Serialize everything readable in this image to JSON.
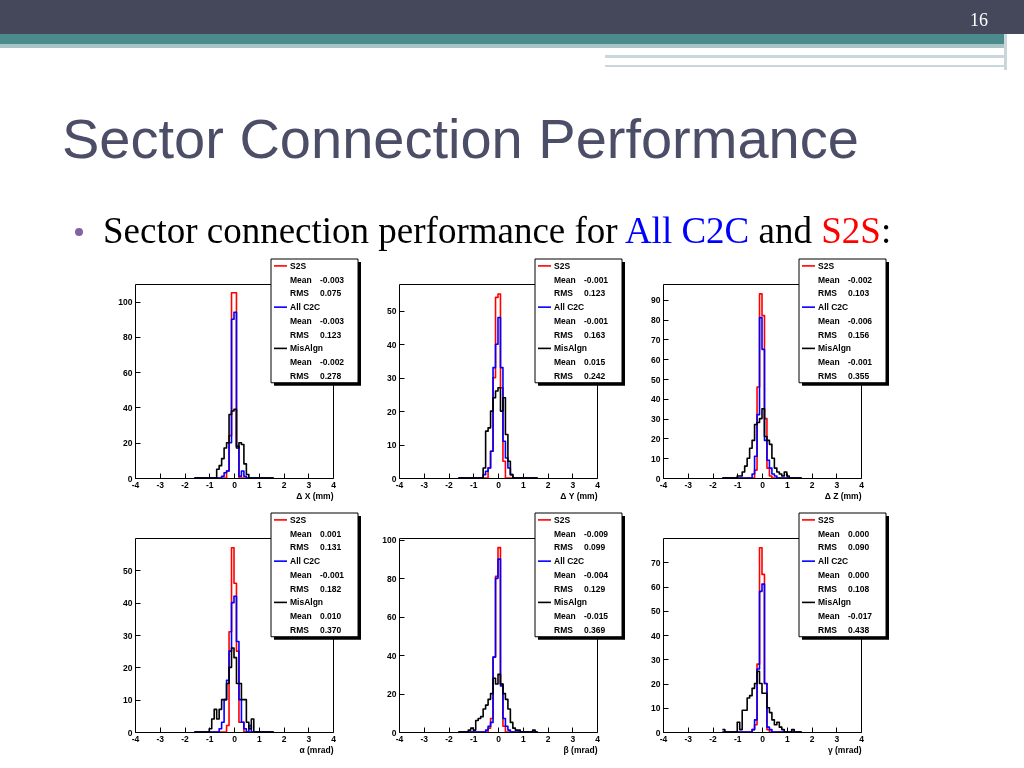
{
  "chart_data": [
    {
      "type": "histogram",
      "title": "Sector Connection Performance",
      "subtitle": "Sector connection performance for All C2C and S2S:",
      "xlabel": "Δ X (mm)",
      "xlim": [
        -4,
        4
      ],
      "xticks": [
        -4,
        -3,
        -2,
        -1,
        0,
        1,
        2,
        3,
        4
      ],
      "ylim": [
        0,
        110
      ],
      "yticks": [
        0,
        20,
        40,
        60,
        80,
        100
      ],
      "legend": "top right",
      "bins": [
        -1.6,
        -1.5,
        -1.4,
        -1.3,
        -1.2,
        -1.1,
        -1,
        -0.9,
        -0.8,
        -0.7,
        -0.6,
        -0.5,
        -0.4,
        -0.3,
        -0.2,
        -0.1,
        0,
        0.1,
        0.2,
        0.3,
        0.4,
        0.5,
        0.6,
        0.7,
        0.8,
        0.9,
        1,
        1.1,
        1.2,
        1.3,
        1.4,
        1.5,
        1.6
      ],
      "series": [
        {
          "name": "S2S",
          "color": "#ff0000",
          "values": [
            0,
            0,
            0,
            0,
            0,
            0,
            0,
            0,
            0,
            0,
            0,
            0,
            0,
            4,
            24,
            105,
            105,
            18,
            0,
            0,
            0,
            0,
            0,
            0,
            0,
            0,
            0,
            0,
            0,
            0,
            0,
            0
          ]
        },
        {
          "name": "All C2C",
          "color": "#0000ff",
          "values": [
            0,
            0,
            0,
            0,
            0,
            0,
            0,
            0,
            0,
            0,
            0,
            1,
            3,
            4,
            20,
            90,
            94,
            18,
            1,
            4,
            1,
            0,
            0,
            0,
            0,
            0,
            0,
            0,
            0,
            0,
            0,
            0
          ]
        },
        {
          "name": "MisAlgn",
          "color": "#000000",
          "values": [
            0,
            0,
            0,
            0,
            0,
            0,
            0,
            0,
            0,
            5,
            7,
            11,
            17,
            20,
            36,
            38,
            39,
            17,
            20,
            19,
            8,
            2,
            0,
            0,
            0,
            0,
            0,
            0,
            0,
            0,
            0,
            0
          ]
        }
      ],
      "annotations": [
        "Mean -0.003",
        "RMS 0.075",
        "Mean -0.003",
        "RMS 0.123",
        "Mean -0.002",
        "RMS 0.278",
        "16"
      ]
    },
    {
      "type": "histogram",
      "xlabel": "Δ Y (mm)",
      "xlim": [
        -4,
        4
      ],
      "xticks": [
        -4,
        -3,
        -2,
        -1,
        0,
        1,
        2,
        3,
        4
      ],
      "ylim": [
        0,
        58
      ],
      "yticks": [
        0,
        10,
        20,
        30,
        40,
        50
      ],
      "legend": "top right",
      "bins": [
        -1.6,
        -1.5,
        -1.4,
        -1.3,
        -1.2,
        -1.1,
        -1,
        -0.9,
        -0.8,
        -0.7,
        -0.6,
        -0.5,
        -0.4,
        -0.3,
        -0.2,
        -0.1,
        0,
        0.1,
        0.2,
        0.3,
        0.4,
        0.5,
        0.6,
        0.7,
        0.8,
        0.9,
        1,
        1.1,
        1.2,
        1.3,
        1.4,
        1.5,
        1.6
      ],
      "series": [
        {
          "name": "S2S",
          "color": "#ff0000",
          "values": [
            0,
            0,
            0,
            0,
            0,
            0,
            0,
            0,
            0,
            0,
            0,
            0,
            3,
            8,
            30,
            54,
            55,
            27,
            5,
            0,
            0,
            0,
            0,
            0,
            0,
            0,
            0,
            0,
            0,
            0,
            0,
            0
          ]
        },
        {
          "name": "All C2C",
          "color": "#0000ff",
          "values": [
            0,
            0,
            0,
            0,
            0,
            0,
            0,
            0,
            0,
            0,
            1,
            2,
            3,
            8,
            33,
            40,
            48,
            33,
            11,
            6,
            3,
            1,
            0,
            0,
            0,
            0,
            0,
            0,
            0,
            0,
            0,
            0
          ]
        },
        {
          "name": "MisAlgn",
          "color": "#000000",
          "values": [
            0,
            0,
            0,
            0,
            0,
            0,
            0,
            0,
            0,
            0,
            3,
            14,
            15,
            20,
            24,
            26,
            27,
            20,
            24,
            13,
            5,
            1,
            0,
            0,
            0,
            0,
            0,
            0,
            0,
            0,
            0,
            0
          ]
        }
      ],
      "annotations": [
        "Mean -0.001",
        "RMS 0.123",
        "Mean -0.001",
        "RMS 0.163",
        "Mean 0.015",
        "RMS 0.242"
      ]
    },
    {
      "type": "histogram",
      "xlabel": "Δ Z (mm)",
      "xlim": [
        -4,
        4
      ],
      "xticks": [
        -4,
        -3,
        -2,
        -1,
        0,
        1,
        2,
        3,
        4
      ],
      "ylim": [
        0,
        98
      ],
      "yticks": [
        0,
        10,
        20,
        30,
        40,
        50,
        60,
        70,
        80,
        90
      ],
      "legend": "top right",
      "bins": [
        -1.6,
        -1.5,
        -1.4,
        -1.3,
        -1.2,
        -1.1,
        -1,
        -0.9,
        -0.8,
        -0.7,
        -0.6,
        -0.5,
        -0.4,
        -0.3,
        -0.2,
        -0.1,
        0,
        0.1,
        0.2,
        0.3,
        0.4,
        0.5,
        0.6,
        0.7,
        0.8,
        0.9,
        1,
        1.1,
        1.2,
        1.3,
        1.4,
        1.5,
        1.6
      ],
      "series": [
        {
          "name": "S2S",
          "color": "#ff0000",
          "values": [
            0,
            0,
            0,
            0,
            0,
            0,
            0,
            0,
            0,
            0,
            0,
            0,
            0,
            4,
            46,
            93,
            82,
            30,
            5,
            1,
            0,
            0,
            0,
            0,
            0,
            0,
            0,
            0,
            0,
            0,
            0,
            0
          ]
        },
        {
          "name": "All C2C",
          "color": "#0000ff",
          "values": [
            0,
            0,
            0,
            0,
            0,
            0,
            0,
            0,
            0,
            0,
            0,
            0,
            2,
            11,
            32,
            81,
            65,
            19,
            9,
            5,
            2,
            1,
            0,
            0,
            0,
            0,
            0,
            0,
            0,
            0,
            0,
            0
          ]
        },
        {
          "name": "MisAlgn",
          "color": "#000000",
          "values": [
            0,
            0,
            0,
            0,
            0,
            0,
            1,
            1,
            3,
            6,
            10,
            15,
            19,
            27,
            28,
            30,
            35,
            21,
            19,
            17,
            10,
            5,
            3,
            2,
            1,
            3,
            1,
            0,
            0,
            0,
            0,
            0
          ]
        }
      ],
      "annotations": [
        "Mean -0.002",
        "RMS 0.103",
        "Mean -0.006",
        "RMS 0.156",
        "Mean -0.001",
        "RMS 0.355"
      ]
    },
    {
      "type": "histogram",
      "xlabel": "α (mrad)",
      "xlim": [
        -4,
        4
      ],
      "xticks": [
        -4,
        -3,
        -2,
        -1,
        0,
        1,
        2,
        3,
        4
      ],
      "ylim": [
        0,
        60
      ],
      "yticks": [
        0,
        10,
        20,
        30,
        40,
        50
      ],
      "legend": "top right",
      "bins": [
        -1.6,
        -1.5,
        -1.4,
        -1.3,
        -1.2,
        -1.1,
        -1,
        -0.9,
        -0.8,
        -0.7,
        -0.6,
        -0.5,
        -0.4,
        -0.3,
        -0.2,
        -0.1,
        0,
        0.1,
        0.2,
        0.3,
        0.4,
        0.5,
        0.6,
        0.7,
        0.8,
        0.9,
        1,
        1.1,
        1.2,
        1.3,
        1.4,
        1.5,
        1.6
      ],
      "series": [
        {
          "name": "S2S",
          "color": "#ff0000",
          "values": [
            0,
            0,
            0,
            0,
            0,
            0,
            0,
            0,
            0,
            0,
            0,
            0,
            0,
            2,
            31,
            57,
            46,
            25,
            3,
            3,
            0,
            0,
            0,
            0,
            0,
            0,
            0,
            0,
            0,
            0,
            0,
            0
          ]
        },
        {
          "name": "All C2C",
          "color": "#0000ff",
          "values": [
            0,
            0,
            0,
            0,
            0,
            0,
            0,
            0,
            0,
            0,
            1,
            3,
            10,
            16,
            25,
            40,
            42,
            28,
            10,
            3,
            1,
            0,
            2,
            0,
            0,
            0,
            0,
            0,
            0,
            0,
            0,
            0
          ]
        },
        {
          "name": "MisAlgn",
          "color": "#000000",
          "values": [
            0,
            0,
            0,
            0,
            0,
            0,
            1,
            4,
            7,
            4,
            7,
            10,
            10,
            15,
            20,
            26,
            23,
            15,
            15,
            10,
            10,
            3,
            1,
            4,
            0,
            0,
            0,
            0,
            0,
            0,
            0,
            0
          ]
        }
      ],
      "annotations": [
        "Mean 0.001",
        "RMS 0.131",
        "Mean -0.001",
        "RMS 0.182",
        "Mean 0.010",
        "RMS 0.370"
      ]
    },
    {
      "type": "histogram",
      "xlabel": "β (mrad)",
      "xlim": [
        -4,
        4
      ],
      "xticks": [
        -4,
        -3,
        -2,
        -1,
        0,
        1,
        2,
        3,
        4
      ],
      "ylim": [
        0,
        101
      ],
      "yticks": [
        0,
        20,
        40,
        60,
        80,
        100
      ],
      "legend": "top right",
      "bins": [
        -1.6,
        -1.5,
        -1.4,
        -1.3,
        -1.2,
        -1.1,
        -1,
        -0.9,
        -0.8,
        -0.7,
        -0.6,
        -0.5,
        -0.4,
        -0.3,
        -0.2,
        -0.1,
        0,
        0.1,
        0.2,
        0.3,
        0.4,
        0.5,
        0.6,
        0.7,
        0.8,
        0.9,
        1,
        1.1,
        1.2,
        1.3,
        1.4,
        1.5,
        1.6
      ],
      "series": [
        {
          "name": "S2S",
          "color": "#ff0000",
          "values": [
            0,
            0,
            0,
            0,
            0,
            0,
            0,
            0,
            0,
            0,
            0,
            0,
            2,
            7,
            39,
            81,
            96,
            25,
            3,
            0,
            0,
            0,
            0,
            0,
            0,
            0,
            0,
            0,
            0,
            0,
            0,
            0
          ]
        },
        {
          "name": "All C2C",
          "color": "#0000ff",
          "values": [
            0,
            0,
            0,
            0,
            0,
            0,
            0,
            0,
            0,
            0,
            0,
            1,
            3,
            5,
            39,
            80,
            90,
            24,
            7,
            3,
            1,
            0,
            0,
            0,
            0,
            0,
            0,
            0,
            0,
            0,
            0,
            0
          ]
        },
        {
          "name": "MisAlgn",
          "color": "#000000",
          "values": [
            0,
            0,
            0,
            0,
            1,
            2,
            1,
            6,
            7,
            8,
            12,
            14,
            17,
            20,
            28,
            25,
            30,
            25,
            20,
            17,
            12,
            5,
            2,
            1,
            1,
            0,
            0,
            0,
            0,
            0,
            1,
            0
          ]
        }
      ],
      "annotations": [
        "Mean -0.009",
        "RMS 0.099",
        "Mean -0.004",
        "RMS 0.129",
        "Mean -0.015",
        "RMS 0.369"
      ]
    },
    {
      "type": "histogram",
      "xlabel": "γ (mrad)",
      "xlim": [
        -4,
        4
      ],
      "xticks": [
        -4,
        -3,
        -2,
        -1,
        0,
        1,
        2,
        3,
        4
      ],
      "ylim": [
        0,
        80
      ],
      "yticks": [
        0,
        10,
        20,
        30,
        40,
        50,
        60,
        70
      ],
      "legend": "top right",
      "bins": [
        -1.6,
        -1.5,
        -1.4,
        -1.3,
        -1.2,
        -1.1,
        -1,
        -0.9,
        -0.8,
        -0.7,
        -0.6,
        -0.5,
        -0.4,
        -0.3,
        -0.2,
        -0.1,
        0,
        0.1,
        0.2,
        0.3,
        0.4,
        0.5,
        0.6,
        0.7,
        0.8,
        0.9,
        1,
        1.1,
        1.2,
        1.3,
        1.4,
        1.5,
        1.6
      ],
      "series": [
        {
          "name": "S2S",
          "color": "#ff0000",
          "values": [
            0,
            0,
            0,
            0,
            0,
            0,
            0,
            0,
            0,
            0,
            0,
            0,
            1,
            3,
            28,
            76,
            65,
            20,
            1,
            0,
            0,
            0,
            0,
            0,
            0,
            0,
            0,
            0,
            0,
            0,
            0,
            0
          ]
        },
        {
          "name": "All C2C",
          "color": "#0000ff",
          "values": [
            0,
            0,
            0,
            0,
            0,
            0,
            0,
            0,
            0,
            0,
            0,
            0,
            1,
            5,
            26,
            58,
            61,
            20,
            2,
            1,
            0,
            0,
            0,
            0,
            0,
            0,
            0,
            0,
            0,
            0,
            0,
            0
          ]
        },
        {
          "name": "MisAlgn",
          "color": "#000000",
          "values": [
            1,
            0,
            0,
            0,
            0,
            0,
            4,
            1,
            9,
            9,
            14,
            15,
            18,
            20,
            25,
            20,
            16,
            16,
            10,
            8,
            5,
            3,
            4,
            2,
            1,
            0,
            0,
            0,
            1,
            0,
            0,
            0
          ]
        }
      ],
      "annotations": [
        "Mean 0.000",
        "RMS 0.090",
        "Mean 0.000",
        "RMS 0.108",
        "Mean -0.017",
        "RMS 0.438"
      ]
    }
  ]
}
